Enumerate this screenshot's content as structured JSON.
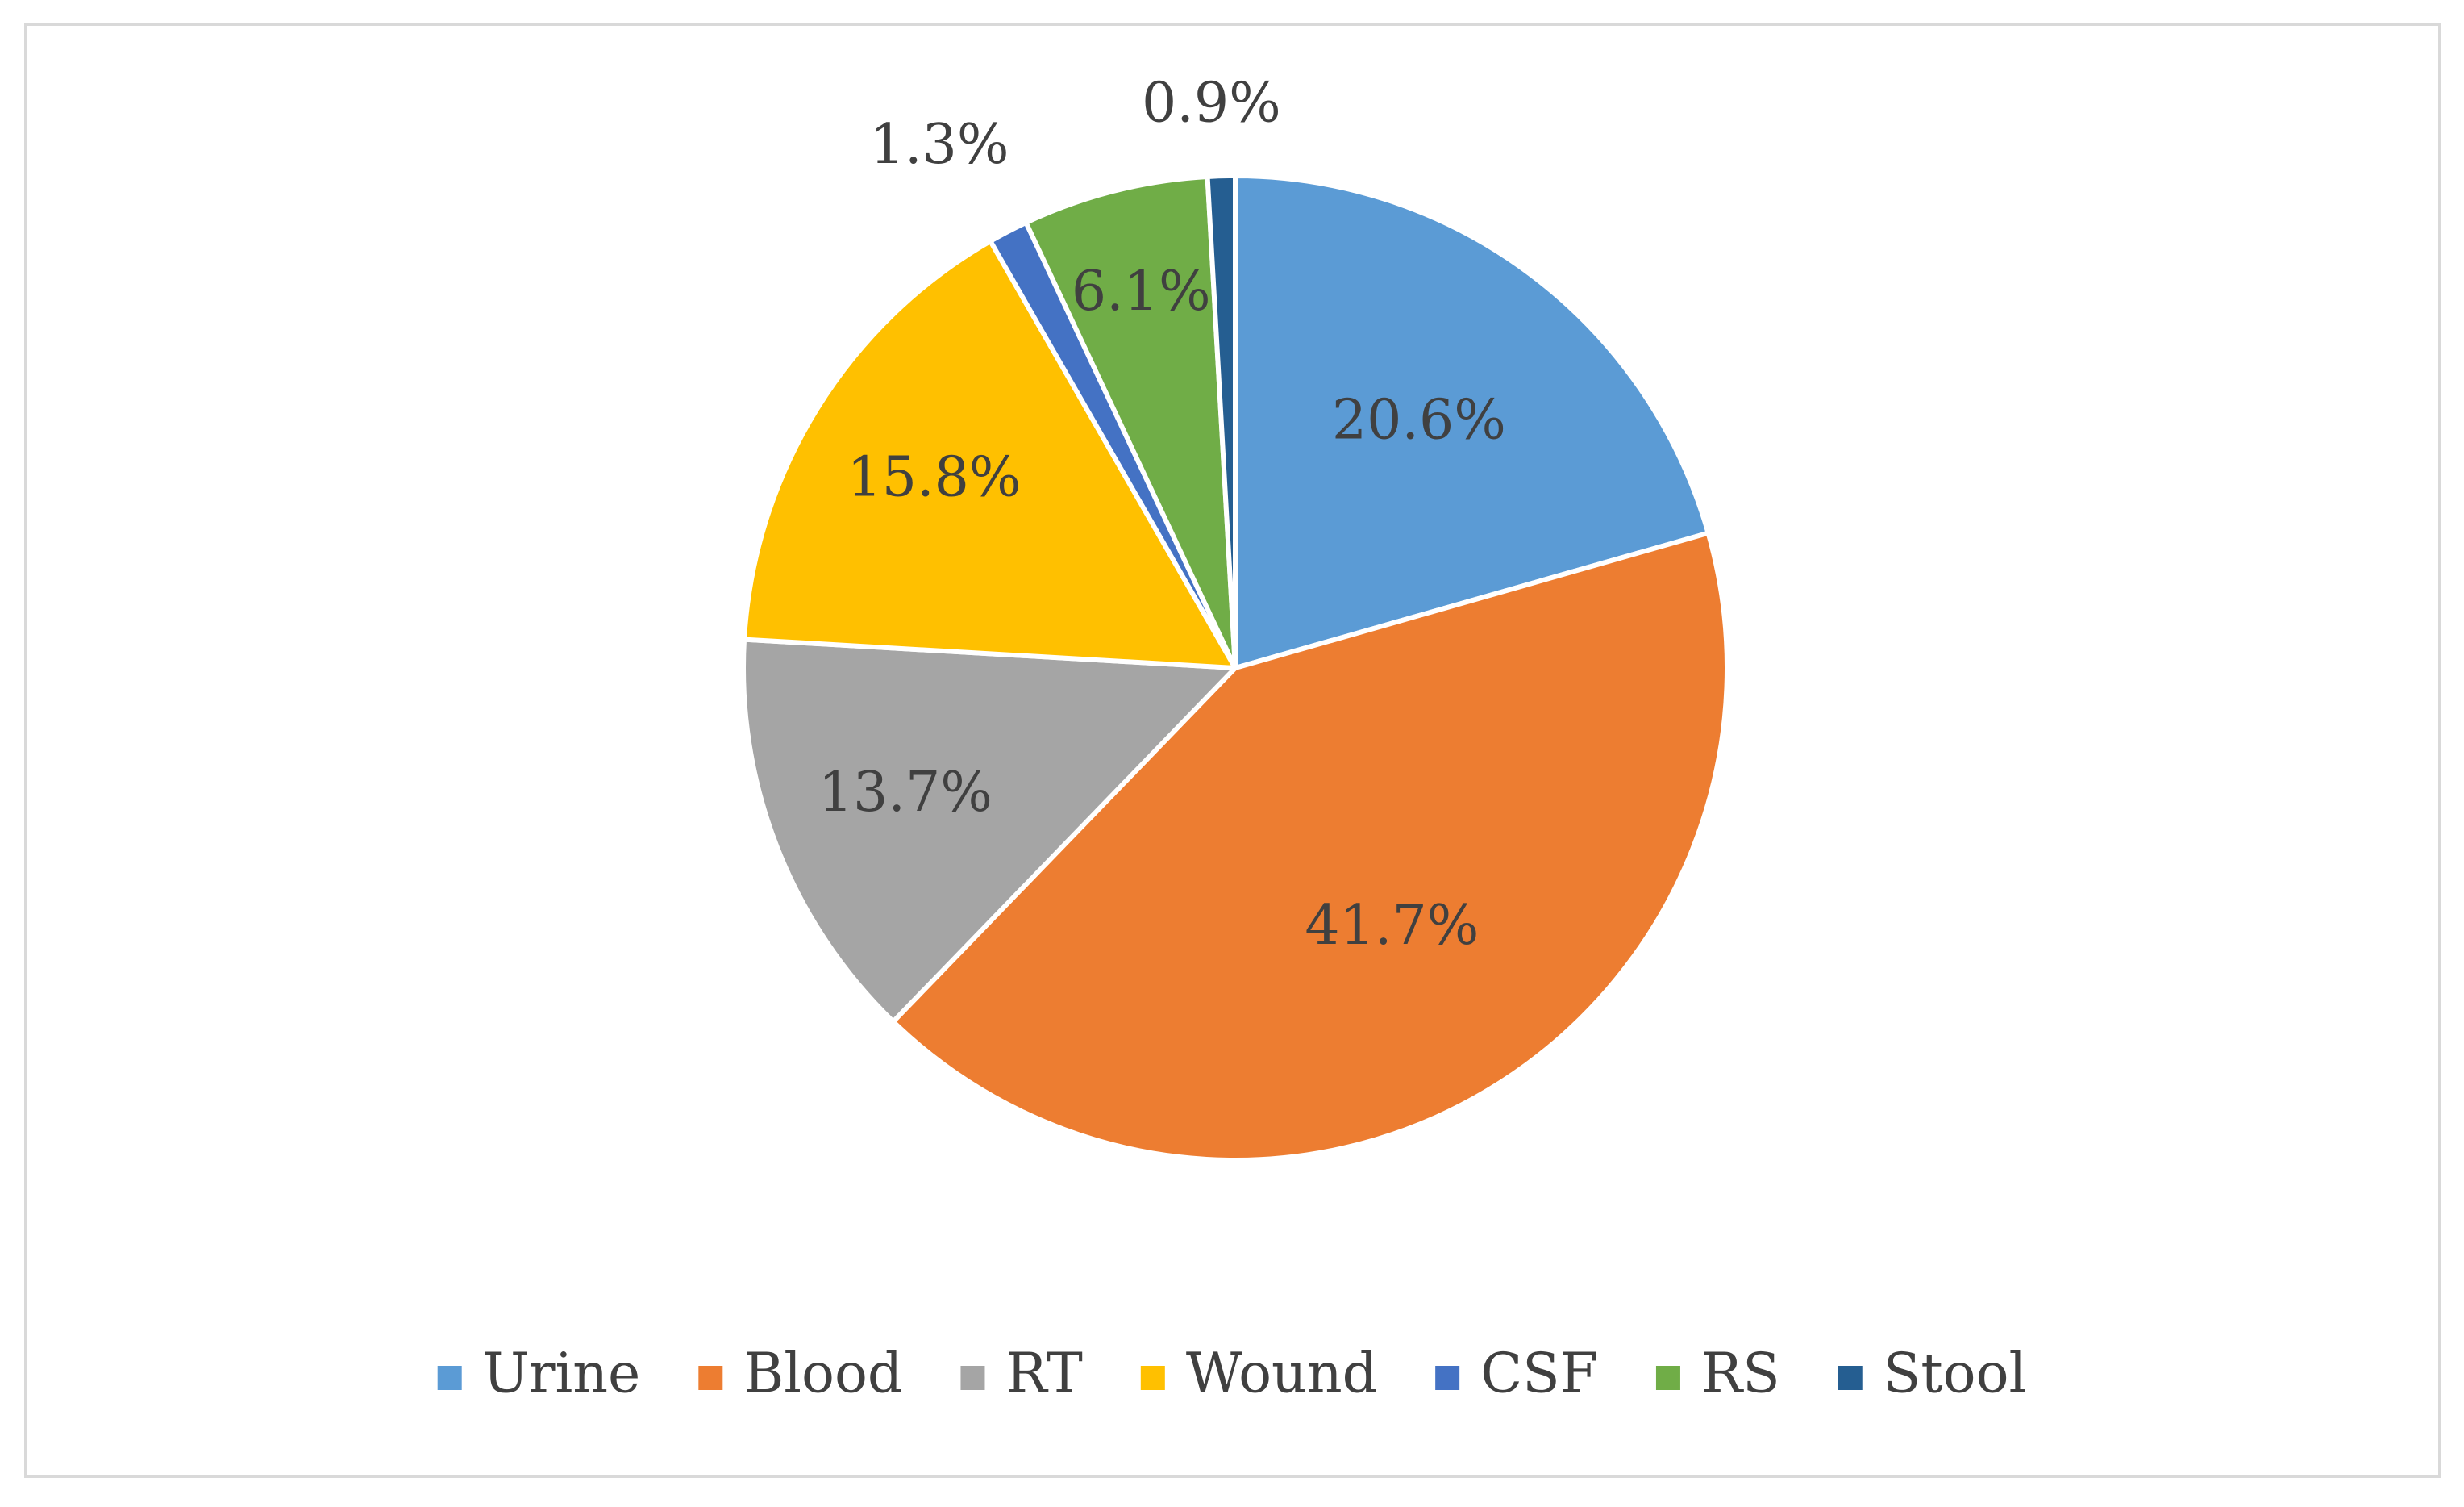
{
  "chart_data": {
    "type": "pie",
    "title": "",
    "legend_position": "bottom",
    "slices": [
      {
        "label": "Urine",
        "value": 20.6,
        "display": "20.6%",
        "color": "#5b9bd5"
      },
      {
        "label": "Blood",
        "value": 41.7,
        "display": "41.7%",
        "color": "#ed7d31"
      },
      {
        "label": "RT",
        "value": 13.7,
        "display": "13.7%",
        "color": "#a5a5a5"
      },
      {
        "label": "Wound",
        "value": 15.8,
        "display": "15.8%",
        "color": "#ffc000"
      },
      {
        "label": "CSF",
        "value": 1.3,
        "display": "1.3%",
        "color": "#4472c4"
      },
      {
        "label": "RS",
        "value": 6.1,
        "display": "6.1%",
        "color": "#70ad47"
      },
      {
        "label": "Stool",
        "value": 0.9,
        "display": "0.9%",
        "color": "#255e91"
      }
    ]
  }
}
